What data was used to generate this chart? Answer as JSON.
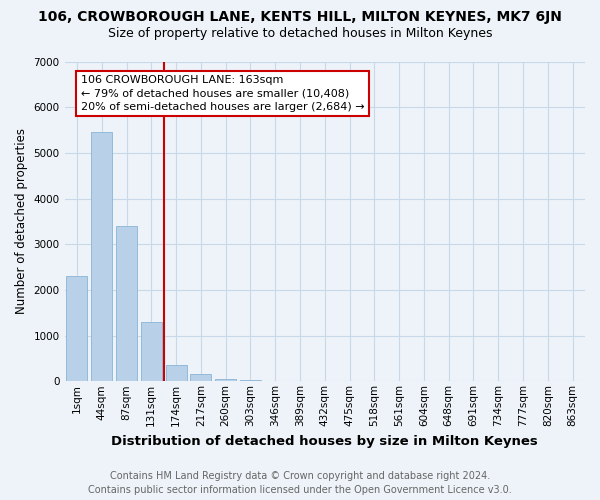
{
  "title": "106, CROWBOROUGH LANE, KENTS HILL, MILTON KEYNES, MK7 6JN",
  "subtitle": "Size of property relative to detached houses in Milton Keynes",
  "xlabel": "Distribution of detached houses by size in Milton Keynes",
  "ylabel": "Number of detached properties",
  "footer_line1": "Contains HM Land Registry data © Crown copyright and database right 2024.",
  "footer_line2": "Contains public sector information licensed under the Open Government Licence v3.0.",
  "bar_labels": [
    "1sqm",
    "44sqm",
    "87sqm",
    "131sqm",
    "174sqm",
    "217sqm",
    "260sqm",
    "303sqm",
    "346sqm",
    "389sqm",
    "432sqm",
    "475sqm",
    "518sqm",
    "561sqm",
    "604sqm",
    "648sqm",
    "691sqm",
    "734sqm",
    "777sqm",
    "820sqm",
    "863sqm"
  ],
  "bar_values": [
    2300,
    5450,
    3400,
    1300,
    350,
    150,
    50,
    20,
    5,
    2,
    1,
    0,
    0,
    0,
    0,
    0,
    0,
    0,
    0,
    0,
    0
  ],
  "bar_color": "#b8d0e8",
  "bar_edge_color": "#8ab4d8",
  "grid_color": "#c8d8e8",
  "bg_color": "#edf3f8",
  "red_line_color": "#cc0000",
  "red_line_x": 3.5,
  "annotation_text": "106 CROWBOROUGH LANE: 163sqm\n← 79% of detached houses are smaller (10,408)\n20% of semi-detached houses are larger (2,684) →",
  "annotation_box_facecolor": "#ffffff",
  "annotation_box_edgecolor": "#cc0000",
  "ylim_max": 7000,
  "ytick_step": 1000,
  "title_fontsize": 10,
  "subtitle_fontsize": 9,
  "xlabel_fontsize": 9.5,
  "ylabel_fontsize": 8.5,
  "tick_fontsize": 7.5,
  "footer_fontsize": 7,
  "annotation_fontsize": 8
}
